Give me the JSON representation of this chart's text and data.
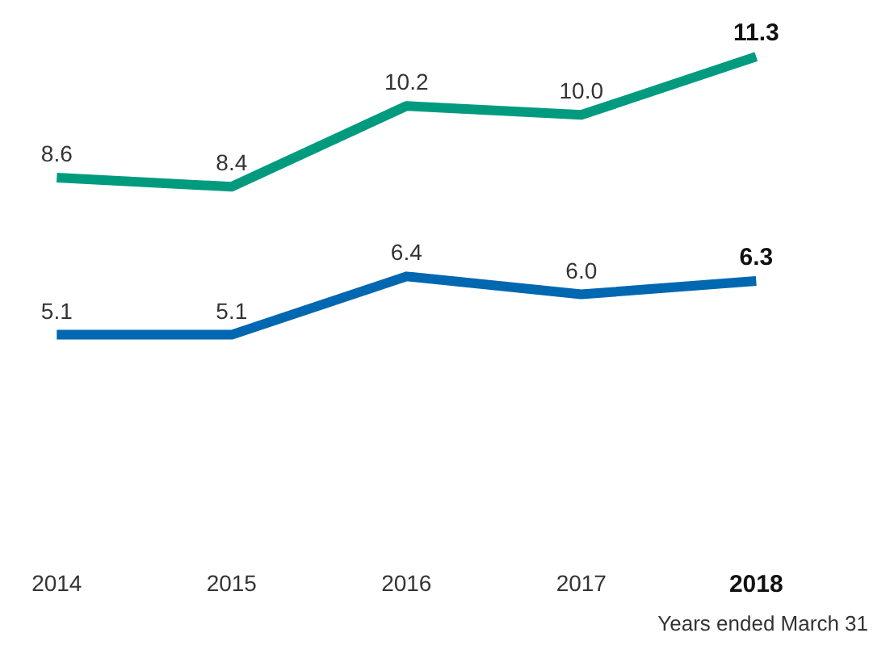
{
  "chart_data": {
    "type": "line",
    "categories": [
      "2014",
      "2015",
      "2016",
      "2017",
      "2018"
    ],
    "series": [
      {
        "color": "#009b7e",
        "values": [
          8.6,
          8.4,
          10.2,
          10.0,
          11.3
        ],
        "value_labels": [
          "8.6",
          "8.4",
          "10.2",
          "10.0",
          "11.3"
        ]
      },
      {
        "color": "#0067b1",
        "values": [
          5.1,
          5.1,
          6.4,
          6.0,
          6.3
        ],
        "value_labels": [
          "5.1",
          "5.1",
          "6.4",
          "6.0",
          "6.3"
        ]
      }
    ],
    "grid": false,
    "marker": "none",
    "line_style": "solid",
    "annotations": [
      "Years ended March 31"
    ]
  }
}
